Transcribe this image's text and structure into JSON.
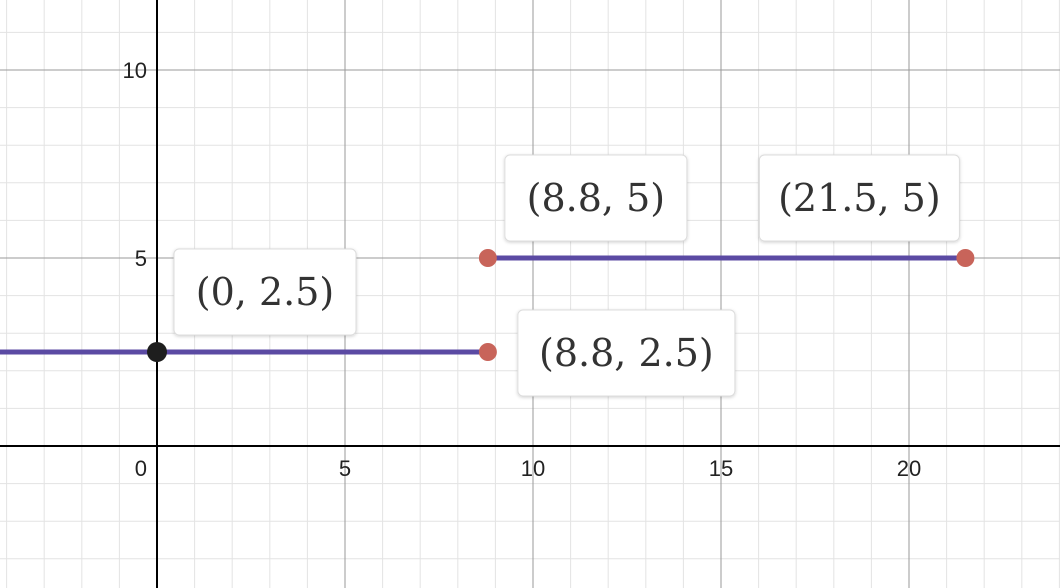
{
  "chart_data": {
    "type": "line",
    "title": "",
    "xlabel": "",
    "ylabel": "",
    "xlim": [
      -4.2,
      24
    ],
    "ylim": [
      -3.7,
      12
    ],
    "grid": true,
    "x_ticks": [
      "0",
      "5",
      "10",
      "15",
      "20"
    ],
    "y_ticks": [
      "5",
      "10"
    ],
    "colors": {
      "segment": "#5b4aa3",
      "open_point": "#c8645a",
      "closed_point": "#1e1e1e"
    },
    "series": [
      {
        "points": [
          [
            -4.2,
            2.5
          ],
          [
            8.8,
            2.5
          ]
        ]
      },
      {
        "points": [
          [
            8.8,
            5
          ],
          [
            21.5,
            5
          ]
        ]
      }
    ],
    "points": [
      {
        "x": 0,
        "y": 2.5,
        "style": "closed",
        "label": "(0, 2.5)",
        "label_side": "upper-right"
      },
      {
        "x": 8.8,
        "y": 2.5,
        "style": "open",
        "label": "(8.8, 2.5)",
        "label_side": "right"
      },
      {
        "x": 8.8,
        "y": 5,
        "style": "open",
        "label": "(8.8, 5)",
        "label_side": "upper-right"
      },
      {
        "x": 21.5,
        "y": 5,
        "style": "open",
        "label": "(21.5, 5)",
        "label_side": "upper-left"
      }
    ]
  }
}
